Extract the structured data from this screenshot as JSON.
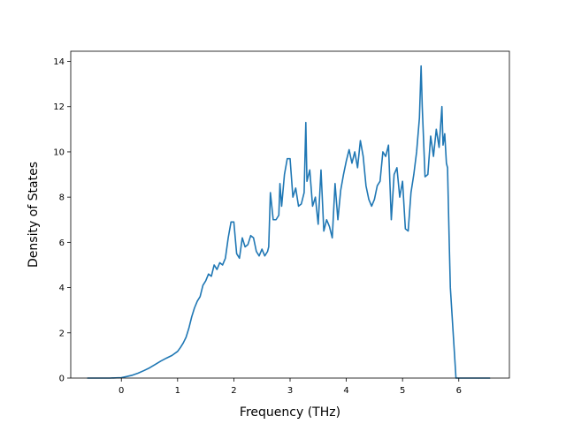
{
  "chart_data": {
    "type": "line",
    "title": "",
    "xlabel": "Frequency (THz)",
    "ylabel": "Density of States",
    "xlim": [
      -0.9,
      6.9
    ],
    "ylim": [
      0,
      14.45
    ],
    "xticks": [
      0,
      1,
      2,
      3,
      4,
      5,
      6
    ],
    "yticks": [
      0,
      2,
      4,
      6,
      8,
      10,
      12,
      14
    ],
    "grid": false,
    "legend": "none",
    "series": [
      {
        "color": "#1f77b4",
        "x": [
          -0.6,
          -0.4,
          -0.2,
          0.0,
          0.1,
          0.2,
          0.3,
          0.4,
          0.5,
          0.6,
          0.7,
          0.8,
          0.9,
          1.0,
          1.05,
          1.1,
          1.15,
          1.2,
          1.25,
          1.3,
          1.35,
          1.4,
          1.45,
          1.5,
          1.55,
          1.6,
          1.65,
          1.7,
          1.75,
          1.8,
          1.85,
          1.9,
          1.95,
          2.0,
          2.05,
          2.1,
          2.15,
          2.2,
          2.25,
          2.3,
          2.35,
          2.4,
          2.45,
          2.5,
          2.55,
          2.6,
          2.62,
          2.65,
          2.7,
          2.75,
          2.8,
          2.82,
          2.85,
          2.9,
          2.95,
          3.0,
          3.05,
          3.1,
          3.15,
          3.2,
          3.25,
          3.28,
          3.3,
          3.35,
          3.4,
          3.45,
          3.5,
          3.55,
          3.6,
          3.65,
          3.7,
          3.75,
          3.8,
          3.85,
          3.9,
          3.95,
          4.0,
          4.05,
          4.1,
          4.15,
          4.2,
          4.25,
          4.3,
          4.35,
          4.4,
          4.45,
          4.5,
          4.55,
          4.6,
          4.65,
          4.7,
          4.75,
          4.8,
          4.85,
          4.9,
          4.95,
          5.0,
          5.05,
          5.1,
          5.15,
          5.2,
          5.25,
          5.3,
          5.33,
          5.35,
          5.4,
          5.45,
          5.5,
          5.55,
          5.6,
          5.65,
          5.7,
          5.72,
          5.75,
          5.78,
          5.8,
          5.83,
          5.85,
          5.9,
          5.95,
          6.0,
          6.1,
          6.3,
          6.55
        ],
        "y": [
          0,
          0,
          0,
          0.02,
          0.07,
          0.13,
          0.22,
          0.33,
          0.45,
          0.6,
          0.75,
          0.88,
          1.0,
          1.18,
          1.35,
          1.55,
          1.8,
          2.2,
          2.7,
          3.1,
          3.4,
          3.6,
          4.1,
          4.3,
          4.6,
          4.5,
          5.0,
          4.8,
          5.1,
          5.0,
          5.3,
          6.2,
          6.9,
          6.9,
          5.5,
          5.3,
          6.2,
          5.8,
          5.9,
          6.3,
          6.2,
          5.6,
          5.4,
          5.7,
          5.4,
          5.6,
          5.8,
          8.2,
          7.0,
          7.0,
          7.2,
          8.6,
          7.6,
          9.0,
          9.7,
          9.7,
          8.0,
          8.4,
          7.6,
          7.7,
          8.2,
          11.3,
          8.7,
          9.2,
          7.6,
          8.0,
          6.8,
          9.2,
          6.5,
          7.0,
          6.7,
          6.2,
          8.6,
          7.0,
          8.3,
          9.0,
          9.6,
          10.1,
          9.5,
          10.0,
          9.3,
          10.5,
          9.8,
          8.5,
          7.9,
          7.6,
          7.9,
          8.5,
          8.7,
          10.0,
          9.8,
          10.3,
          7.0,
          9.0,
          9.3,
          8.0,
          8.7,
          6.6,
          6.5,
          8.2,
          9.0,
          10.0,
          11.5,
          13.8,
          12.0,
          8.9,
          9.0,
          10.7,
          9.8,
          11.0,
          10.2,
          12.0,
          10.3,
          10.8,
          9.5,
          9.3,
          6.0,
          4.0,
          2.0,
          0.0,
          0,
          0,
          0,
          0
        ]
      }
    ]
  }
}
